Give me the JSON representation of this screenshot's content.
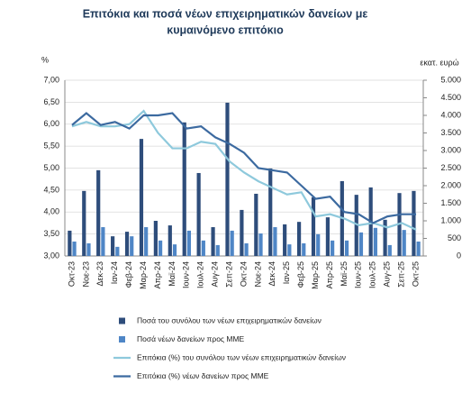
{
  "chart_data": {
    "type": "bar-line",
    "title": [
      "Επιτόκια και ποσά νέων επιχειρηματικών δανείων με",
      "κυμαινόμενο επιτόκιο"
    ],
    "y_label": "%",
    "y2_label": "εκατ. ευρώ",
    "categories": [
      "Οκτ-23",
      "Νοε-23",
      "Δεκ-23",
      "Ιαν-24",
      "Φεβ-24",
      "Μαρ-24",
      "Απρ-24",
      "Μαϊ-24",
      "Ιουν-24",
      "Ιουλ-24",
      "Αυγ-24",
      "Σεπ-24",
      "Οκτ-24",
      "Νοε-24",
      "Δεκ-24",
      "Ιαν-25",
      "Φεβ-25",
      "Μαρ-25",
      "Απρ-25",
      "Μαϊ-25",
      "Ιουν-25",
      "Ιουλ-25",
      "Αυγ-25",
      "Σεπ-25",
      "Οκτ-25"
    ],
    "series": [
      {
        "name": "Ποσά του συνόλου των νέων επιχειρηματικών δανείων",
        "kind": "bar",
        "axis": "y2",
        "color": "#2e4d7b",
        "values": [
          720,
          1850,
          2440,
          560,
          690,
          3330,
          1000,
          870,
          3800,
          2360,
          820,
          4360,
          1310,
          1770,
          2490,
          900,
          970,
          1670,
          1100,
          2130,
          1740,
          1950,
          1030,
          1790,
          1850
        ]
      },
      {
        "name": "Ποσά νέων δανείων προς ΜΜΕ",
        "kind": "bar",
        "axis": "y2",
        "color": "#4f86c6",
        "values": [
          410,
          360,
          820,
          260,
          560,
          820,
          440,
          330,
          720,
          440,
          310,
          720,
          360,
          640,
          820,
          330,
          360,
          620,
          440,
          440,
          670,
          800,
          310,
          740,
          410
        ]
      },
      {
        "name": "Επιτόκια (%) του συνόλου των νέων επιχειρηματικών δανείων",
        "kind": "line",
        "axis": "y",
        "color": "#8ec9dc",
        "values": [
          5.95,
          6.05,
          5.95,
          5.95,
          6.0,
          6.3,
          5.8,
          5.45,
          5.45,
          5.6,
          5.55,
          5.15,
          4.9,
          4.7,
          4.55,
          4.4,
          4.45,
          3.9,
          3.95,
          3.85,
          3.7,
          3.75,
          3.65,
          3.75,
          3.6
        ]
      },
      {
        "name": "Επιτόκια (%) νέων δανείων προς ΜΜΕ",
        "kind": "line",
        "axis": "y",
        "color": "#3c6aa0",
        "values": [
          5.98,
          6.25,
          5.98,
          6.05,
          5.9,
          6.2,
          6.2,
          6.25,
          5.9,
          5.95,
          5.7,
          5.55,
          5.35,
          5.0,
          4.95,
          4.9,
          4.6,
          4.3,
          4.35,
          4.0,
          3.95,
          3.75,
          3.9,
          3.95,
          3.95
        ]
      }
    ],
    "ylim": [
      3,
      7
    ],
    "yticks": [
      {
        "value": 3,
        "label": "3,00"
      },
      {
        "value": 3.5,
        "label": "3,50"
      },
      {
        "value": 4,
        "label": "4,00"
      },
      {
        "value": 4.5,
        "label": "4,50"
      },
      {
        "value": 5,
        "label": "5,00"
      },
      {
        "value": 5.5,
        "label": "5,50"
      },
      {
        "value": 6,
        "label": "6,00"
      },
      {
        "value": 6.5,
        "label": "6,50"
      },
      {
        "value": 7,
        "label": "7,00"
      }
    ],
    "y2lim": [
      0,
      5000
    ],
    "y2ticks": [
      0,
      500,
      {
        "value": 1000,
        "label": "1.000"
      },
      {
        "value": 1500,
        "label": "1.500"
      },
      {
        "value": 2000,
        "label": "2.000"
      },
      {
        "value": 2500,
        "label": "2.500"
      },
      {
        "value": 3000,
        "label": "3.000"
      },
      {
        "value": 3500,
        "label": "3.500"
      },
      {
        "value": 4000,
        "label": "4.000"
      },
      {
        "value": 4500,
        "label": "4.500"
      },
      {
        "value": 5000,
        "label": "5.000"
      }
    ],
    "grid": true
  }
}
